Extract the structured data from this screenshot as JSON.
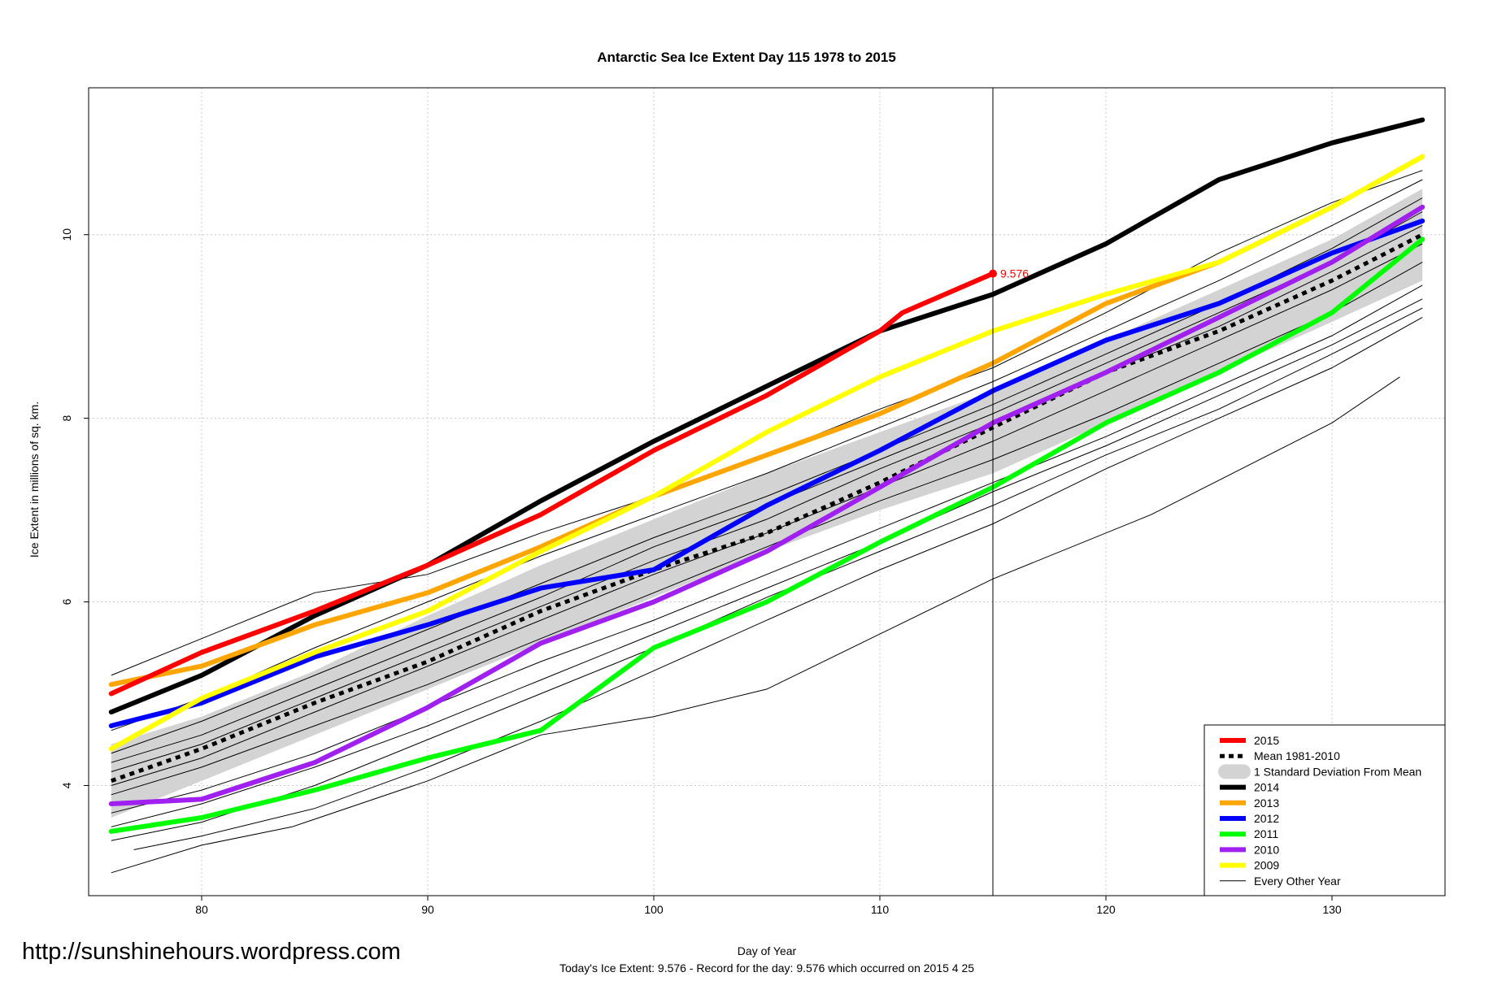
{
  "url": "http://sunshinehours.wordpress.com",
  "footer": "Today's Ice Extent: 9.576  - Record for the day: 9.576 which occurred on 2015 4 25",
  "chart_data": {
    "type": "line",
    "title": "Antarctic Sea Ice Extent Day 115 1978 to 2015",
    "xlabel": "Day of Year",
    "ylabel": "Ice Extent in millions of sq. km.",
    "xlim": [
      75,
      135
    ],
    "ylim": [
      2.8,
      11.6
    ],
    "xticks": [
      80,
      90,
      100,
      110,
      120,
      130
    ],
    "yticks": [
      4,
      6,
      8,
      10
    ],
    "grid": true,
    "legend_position": "bottom-right",
    "vline_day": 115,
    "annotation": {
      "x": 115,
      "y": 9.576,
      "text": "9.576",
      "color": "#ff0000"
    },
    "legend": [
      {
        "label": "2015",
        "kind": "line",
        "color": "#ff0000"
      },
      {
        "label": "Mean 1981-2010",
        "kind": "dashed",
        "color": "#000000"
      },
      {
        "label": "1 Standard Deviation From Mean",
        "kind": "band",
        "color": "#d3d3d3"
      },
      {
        "label": "2014",
        "kind": "line",
        "color": "#000000"
      },
      {
        "label": "2013",
        "kind": "line",
        "color": "#ffa500"
      },
      {
        "label": "2012",
        "kind": "line",
        "color": "#0000ff"
      },
      {
        "label": "2011",
        "kind": "line",
        "color": "#00ff00"
      },
      {
        "label": "2010",
        "kind": "line",
        "color": "#a020f0"
      },
      {
        "label": "2009",
        "kind": "line",
        "color": "#ffff00"
      },
      {
        "label": "Every Other Year",
        "kind": "thin",
        "color": "#000000"
      }
    ],
    "sd_band": {
      "x": [
        76,
        80,
        85,
        90,
        95,
        100,
        105,
        110,
        115,
        120,
        125,
        130,
        134
      ],
      "upper": [
        4.45,
        4.75,
        5.25,
        5.85,
        6.4,
        6.9,
        7.4,
        7.85,
        8.3,
        8.85,
        9.4,
        9.95,
        10.5
      ],
      "lower": [
        3.65,
        4.05,
        4.55,
        5.05,
        5.55,
        6.05,
        6.55,
        7.0,
        7.4,
        7.95,
        8.5,
        9.05,
        9.5
      ]
    },
    "mean": {
      "x": [
        76,
        80,
        85,
        90,
        95,
        100,
        105,
        110,
        115,
        120,
        125,
        130,
        134
      ],
      "values": [
        4.05,
        4.4,
        4.9,
        5.35,
        5.9,
        6.35,
        6.75,
        7.3,
        7.9,
        8.5,
        8.95,
        9.5,
        10.0
      ]
    },
    "series": [
      {
        "name": "2014",
        "color": "#000000",
        "x": [
          76,
          80,
          85,
          90,
          95,
          100,
          105,
          110,
          115,
          120,
          125,
          130,
          134
        ],
        "values": [
          4.8,
          5.2,
          5.85,
          6.4,
          7.1,
          7.75,
          8.35,
          8.95,
          9.35,
          9.9,
          10.6,
          11.0,
          11.25
        ]
      },
      {
        "name": "2013",
        "color": "#ffa500",
        "x": [
          76,
          80,
          85,
          90,
          95,
          100,
          105,
          110,
          115,
          120,
          125,
          130,
          134
        ],
        "values": [
          5.1,
          5.3,
          5.75,
          6.1,
          6.6,
          7.15,
          7.6,
          8.05,
          8.6,
          9.25,
          9.7,
          10.3,
          10.85
        ]
      },
      {
        "name": "2012",
        "color": "#0000ff",
        "x": [
          76,
          80,
          85,
          90,
          95,
          100,
          105,
          110,
          115,
          120,
          125,
          130,
          134
        ],
        "values": [
          4.65,
          4.9,
          5.4,
          5.75,
          6.15,
          6.35,
          7.05,
          7.65,
          8.3,
          8.85,
          9.25,
          9.8,
          10.15
        ]
      },
      {
        "name": "2011",
        "color": "#00ff00",
        "x": [
          76,
          80,
          85,
          90,
          95,
          100,
          105,
          110,
          115,
          120,
          125,
          130,
          134
        ],
        "values": [
          3.5,
          3.65,
          3.95,
          4.3,
          4.6,
          5.5,
          6.0,
          6.65,
          7.25,
          7.95,
          8.5,
          9.15,
          9.95
        ]
      },
      {
        "name": "2010",
        "color": "#a020f0",
        "x": [
          76,
          80,
          85,
          90,
          95,
          100,
          105,
          110,
          115,
          120,
          125,
          130,
          134
        ],
        "values": [
          3.8,
          3.85,
          4.25,
          4.85,
          5.55,
          6.0,
          6.55,
          7.25,
          7.95,
          8.5,
          9.1,
          9.7,
          10.3
        ]
      },
      {
        "name": "2009",
        "color": "#ffff00",
        "x": [
          76,
          80,
          85,
          90,
          95,
          100,
          105,
          110,
          115,
          120,
          125,
          130,
          134
        ],
        "values": [
          4.4,
          4.95,
          5.45,
          5.9,
          6.55,
          7.15,
          7.85,
          8.45,
          8.95,
          9.35,
          9.7,
          10.3,
          10.85
        ]
      },
      {
        "name": "2015",
        "color": "#ff0000",
        "x": [
          76,
          80,
          85,
          90,
          95,
          100,
          105,
          110,
          111,
          115
        ],
        "values": [
          5.0,
          5.45,
          5.9,
          6.4,
          6.95,
          7.65,
          8.25,
          8.95,
          9.15,
          9.576
        ]
      }
    ],
    "other_years": [
      {
        "x": [
          76,
          80,
          84,
          90,
          95,
          100,
          105,
          110,
          115,
          122,
          130,
          133
        ],
        "values": [
          3.05,
          3.35,
          3.55,
          4.05,
          4.55,
          4.75,
          5.05,
          5.65,
          6.25,
          6.95,
          7.95,
          8.45
        ]
      },
      {
        "x": [
          77,
          80,
          85,
          90,
          95,
          100,
          105,
          110,
          115,
          120,
          125,
          130,
          134
        ],
        "values": [
          3.3,
          3.45,
          3.75,
          4.2,
          4.7,
          5.25,
          5.8,
          6.35,
          6.85,
          7.45,
          8.0,
          8.55,
          9.1
        ]
      },
      {
        "x": [
          76,
          80,
          85,
          90,
          95,
          100,
          105,
          110,
          115,
          120,
          125,
          130,
          134
        ],
        "values": [
          3.4,
          3.6,
          4.0,
          4.5,
          5.0,
          5.5,
          6.05,
          6.55,
          7.05,
          7.6,
          8.1,
          8.7,
          9.2
        ]
      },
      {
        "x": [
          76,
          80,
          85,
          90,
          95,
          100,
          105,
          110,
          115,
          120,
          125,
          130,
          134
        ],
        "values": [
          3.7,
          3.95,
          4.35,
          4.85,
          5.35,
          5.8,
          6.3,
          6.8,
          7.3,
          7.8,
          8.35,
          8.9,
          9.45
        ]
      },
      {
        "x": [
          76,
          80,
          85,
          90,
          95,
          100,
          105,
          110,
          115,
          120,
          125,
          130,
          134
        ],
        "values": [
          3.9,
          4.2,
          4.65,
          5.1,
          5.6,
          6.1,
          6.6,
          7.1,
          7.55,
          8.05,
          8.6,
          9.15,
          9.7
        ]
      },
      {
        "x": [
          76,
          80,
          85,
          90,
          95,
          100,
          105,
          110,
          115,
          120,
          125,
          130,
          134
        ],
        "values": [
          4.15,
          4.45,
          4.95,
          5.45,
          5.95,
          6.45,
          6.9,
          7.45,
          7.95,
          8.5,
          9.0,
          9.6,
          10.1
        ]
      },
      {
        "x": [
          76,
          80,
          85,
          90,
          95,
          100,
          105,
          110,
          115,
          120,
          125,
          130,
          134
        ],
        "values": [
          4.35,
          4.7,
          5.2,
          5.7,
          6.2,
          6.7,
          7.15,
          7.65,
          8.15,
          8.7,
          9.25,
          9.85,
          10.4
        ]
      },
      {
        "x": [
          76,
          80,
          85,
          90,
          95,
          100,
          105,
          110,
          115,
          120,
          125,
          130,
          134
        ],
        "values": [
          4.6,
          4.95,
          5.5,
          6.0,
          6.5,
          6.95,
          7.4,
          7.9,
          8.4,
          8.95,
          9.5,
          10.1,
          10.6
        ]
      },
      {
        "x": [
          76,
          80,
          85,
          90,
          95,
          100,
          105,
          110,
          115,
          120,
          125,
          130,
          134
        ],
        "values": [
          5.2,
          5.6,
          6.1,
          6.3,
          6.75,
          7.15,
          7.6,
          8.1,
          8.55,
          9.15,
          9.8,
          10.35,
          10.7
        ]
      },
      {
        "x": [
          76,
          80,
          85,
          90,
          95,
          100,
          105,
          110,
          115,
          120,
          125,
          130,
          134
        ],
        "values": [
          3.55,
          3.8,
          4.2,
          4.65,
          5.15,
          5.65,
          6.15,
          6.65,
          7.2,
          7.7,
          8.25,
          8.8,
          9.3
        ]
      },
      {
        "x": [
          76,
          80,
          85,
          90,
          95,
          100,
          105,
          110,
          115,
          120,
          125,
          130,
          134
        ],
        "values": [
          4.0,
          4.3,
          4.8,
          5.3,
          5.8,
          6.3,
          6.75,
          7.25,
          7.75,
          8.3,
          8.85,
          9.4,
          9.9
        ]
      },
      {
        "x": [
          76,
          80,
          85,
          90,
          95,
          100,
          105,
          110,
          115,
          120,
          125,
          130,
          134
        ],
        "values": [
          4.25,
          4.55,
          5.05,
          5.55,
          6.05,
          6.6,
          7.05,
          7.55,
          8.05,
          8.6,
          9.15,
          9.7,
          10.25
        ]
      }
    ]
  }
}
